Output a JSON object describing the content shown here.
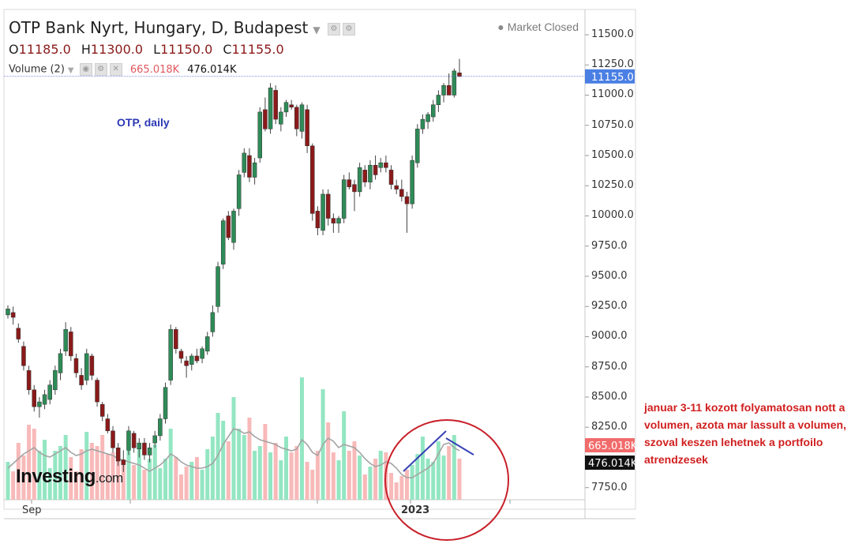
{
  "header": {
    "title": "OTP Bank Nyrt, Hungary, D, Budapest",
    "ohlc": {
      "o_label": "O",
      "o": "11185.0",
      "h_label": "H",
      "h": "11300.0",
      "l_label": "L",
      "l": "11150.0",
      "c_label": "C",
      "c": "11155.0"
    },
    "volume_label": "Volume (2)",
    "volume_value": "665.018K",
    "volume_ma_value": "476.014K",
    "market_status": "Market Closed"
  },
  "annotations": {
    "study_label": "OTP, daily",
    "logo_text": "Investing",
    "logo_suffix": ".com",
    "note": "januar 3-11 kozott folyamatosan nott a volumen, azota mar lassult a volumen, szoval keszen lehetnek a portfoilo atrendzesek"
  },
  "colors": {
    "up": "#2e8b57",
    "down": "#8b1a1a",
    "vol_up": "#93e6c2",
    "vol_down": "#f8b9b9",
    "circle": "#c8202a",
    "trend": "#3742b5",
    "price_tag": "#4a7fe3",
    "note": "#d11f1f"
  },
  "chart_data": {
    "type": "candlestick",
    "title": "OTP Bank Nyrt, Hungary, D, Budapest",
    "price_axis": {
      "range": [
        7650,
        11650
      ],
      "ticks": [
        "11500.0",
        "11250.0",
        "11000.0",
        "10750.0",
        "10500.0",
        "10250.0",
        "10000.0",
        "9750.0",
        "9500.0",
        "9250.0",
        "9000.0",
        "8750.0",
        "8500.0",
        "8250.0",
        "7750.0"
      ]
    },
    "x_ticks": [
      "Sep",
      "2023"
    ],
    "last_price": "11155.0",
    "volume_tag": "665.018K",
    "volume_ma_tag": "476.014K",
    "candles": [
      [
        9180,
        9260,
        9150,
        9230
      ],
      [
        9200,
        9250,
        9100,
        9160
      ],
      [
        9070,
        9110,
        8950,
        8980
      ],
      [
        8920,
        8960,
        8720,
        8760
      ],
      [
        8720,
        8760,
        8520,
        8560
      ],
      [
        8560,
        8600,
        8380,
        8420
      ],
      [
        8420,
        8500,
        8330,
        8460
      ],
      [
        8440,
        8560,
        8400,
        8520
      ],
      [
        8480,
        8640,
        8440,
        8600
      ],
      [
        8560,
        8760,
        8520,
        8720
      ],
      [
        8700,
        8900,
        8640,
        8860
      ],
      [
        8880,
        9120,
        8840,
        9060
      ],
      [
        9040,
        9080,
        8800,
        8840
      ],
      [
        8820,
        8860,
        8660,
        8700
      ],
      [
        8680,
        8740,
        8560,
        8600
      ],
      [
        8640,
        8900,
        8600,
        8860
      ],
      [
        8840,
        8860,
        8640,
        8680
      ],
      [
        8640,
        8660,
        8420,
        8460
      ],
      [
        8440,
        8460,
        8300,
        8340
      ],
      [
        8320,
        8360,
        8200,
        8220
      ],
      [
        8220,
        8260,
        8040,
        8080
      ],
      [
        8080,
        8120,
        7930,
        7970
      ],
      [
        7980,
        8060,
        7880,
        7940
      ],
      [
        8060,
        8260,
        8020,
        8220
      ],
      [
        8200,
        8220,
        8040,
        8080
      ],
      [
        8070,
        8160,
        8000,
        8120
      ],
      [
        8120,
        8160,
        7980,
        8020
      ],
      [
        8020,
        8120,
        7960,
        8080
      ],
      [
        8120,
        8220,
        8080,
        8180
      ],
      [
        8180,
        8360,
        8140,
        8320
      ],
      [
        8320,
        8620,
        8280,
        8580
      ],
      [
        8640,
        9100,
        8600,
        9060
      ],
      [
        9060,
        9080,
        8860,
        8900
      ],
      [
        8880,
        8900,
        8780,
        8820
      ],
      [
        8800,
        8840,
        8660,
        8760
      ],
      [
        8770,
        8860,
        8720,
        8840
      ],
      [
        8840,
        8900,
        8780,
        8800
      ],
      [
        8820,
        8920,
        8780,
        8900
      ],
      [
        8880,
        9040,
        8850,
        9000
      ],
      [
        9040,
        9260,
        9000,
        9200
      ],
      [
        9250,
        9620,
        9200,
        9580
      ],
      [
        9600,
        9980,
        9560,
        9960
      ],
      [
        10000,
        10040,
        9800,
        9820
      ],
      [
        9780,
        10060,
        9720,
        10040
      ],
      [
        10060,
        10380,
        10000,
        10340
      ],
      [
        10360,
        10560,
        10320,
        10520
      ],
      [
        10500,
        10560,
        10280,
        10320
      ],
      [
        10320,
        10480,
        10260,
        10440
      ],
      [
        10480,
        10900,
        10440,
        10860
      ],
      [
        10880,
        10980,
        10700,
        10720
      ],
      [
        10720,
        11100,
        10680,
        11060
      ],
      [
        11040,
        11080,
        10760,
        10800
      ],
      [
        10760,
        10900,
        10700,
        10860
      ],
      [
        10860,
        10960,
        10820,
        10940
      ],
      [
        10920,
        10960,
        10880,
        10900
      ],
      [
        10900,
        10920,
        10660,
        10720
      ],
      [
        10700,
        10940,
        10640,
        10920
      ],
      [
        10880,
        10920,
        10520,
        10580
      ],
      [
        10580,
        10600,
        9960,
        10020
      ],
      [
        10040,
        10080,
        9840,
        9900
      ],
      [
        9880,
        10220,
        9840,
        10180
      ],
      [
        10180,
        10220,
        9920,
        9980
      ],
      [
        9980,
        10020,
        9860,
        9940
      ],
      [
        9940,
        10000,
        9860,
        9980
      ],
      [
        9980,
        10340,
        9940,
        10300
      ],
      [
        10300,
        10360,
        10220,
        10240
      ],
      [
        10260,
        10300,
        10040,
        10200
      ],
      [
        10200,
        10440,
        10160,
        10400
      ],
      [
        10380,
        10420,
        10240,
        10280
      ],
      [
        10280,
        10460,
        10220,
        10420
      ],
      [
        10420,
        10500,
        10300,
        10340
      ],
      [
        10400,
        10480,
        10360,
        10440
      ],
      [
        10440,
        10500,
        10360,
        10400
      ],
      [
        10380,
        10420,
        10220,
        10260
      ],
      [
        10250,
        10300,
        10180,
        10220
      ],
      [
        10220,
        10300,
        10120,
        10160
      ],
      [
        10160,
        10200,
        9860,
        10100
      ],
      [
        10100,
        10500,
        10060,
        10460
      ],
      [
        10440,
        10760,
        10400,
        10720
      ],
      [
        10720,
        10840,
        10680,
        10800
      ],
      [
        10780,
        10860,
        10720,
        10840
      ],
      [
        10820,
        10960,
        10780,
        10920
      ],
      [
        10920,
        11040,
        10860,
        11000
      ],
      [
        11000,
        11100,
        10940,
        11080
      ],
      [
        11080,
        11180,
        11020,
        11000
      ],
      [
        11000,
        11220,
        10980,
        11200
      ],
      [
        11185,
        11300,
        11150,
        11155
      ]
    ],
    "volume_heights": [
      48,
      36,
      72,
      56,
      95,
      90,
      62,
      76,
      40,
      62,
      68,
      82,
      54,
      36,
      64,
      86,
      72,
      68,
      82,
      58,
      60,
      50,
      44,
      76,
      44,
      64,
      38,
      52,
      70,
      40,
      52,
      90,
      54,
      32,
      42,
      48,
      54,
      38,
      64,
      80,
      110,
      100,
      74,
      130,
      90,
      82,
      104,
      62,
      68,
      96,
      60,
      72,
      50,
      80,
      60,
      68,
      155,
      48,
      38,
      62,
      140,
      98,
      60,
      50,
      112,
      62,
      74,
      56,
      32,
      42,
      52,
      62,
      60,
      34,
      22,
      30,
      38,
      44,
      58,
      80,
      52,
      48,
      74,
      56,
      68,
      82,
      52
    ],
    "volume_ma": [
      40,
      46,
      52,
      58,
      62,
      66,
      60,
      56,
      54,
      58,
      62,
      66,
      60,
      56,
      58,
      62,
      64,
      62,
      60,
      58,
      56,
      52,
      50,
      48,
      46,
      44,
      40,
      36,
      40,
      44,
      50,
      58,
      54,
      48,
      44,
      42,
      40,
      40,
      42,
      46,
      56,
      70,
      80,
      90,
      88,
      84,
      86,
      80,
      76,
      74,
      72,
      70,
      66,
      64,
      62,
      64,
      76,
      70,
      60,
      56,
      70,
      78,
      74,
      66,
      70,
      68,
      66,
      60,
      52,
      46,
      42,
      44,
      48,
      46,
      40,
      32,
      28,
      28,
      32,
      36,
      40,
      46,
      58,
      70,
      72,
      66,
      62
    ]
  }
}
